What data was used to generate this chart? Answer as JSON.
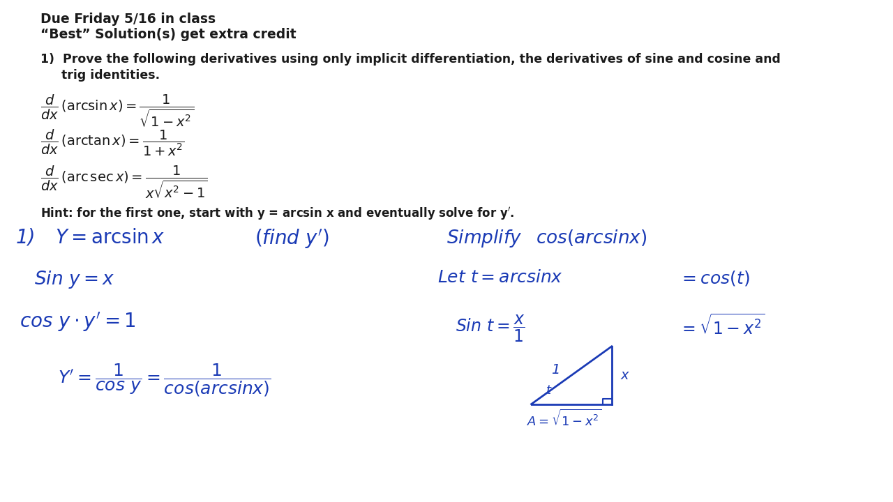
{
  "bg_color": "#ffffff",
  "text_color": "#1a1a1a",
  "formula_color": "#1a1a1a",
  "hw_color": "#1a3ab5",
  "title1": "Due Friday 5/16 in class",
  "title2": "“Best” Solution(s) get extra credit",
  "prob1": "1)  Prove the following derivatives using only implicit differentiation, the derivatives of sine and cosine and",
  "prob2": "     trig identities.",
  "hint": "Hint: for the first one, start with y = arcsin x and eventually solve for y′.",
  "tri": {
    "bx": 0.595,
    "by": 0.195,
    "bw": 0.09,
    "bh": 0.115
  }
}
